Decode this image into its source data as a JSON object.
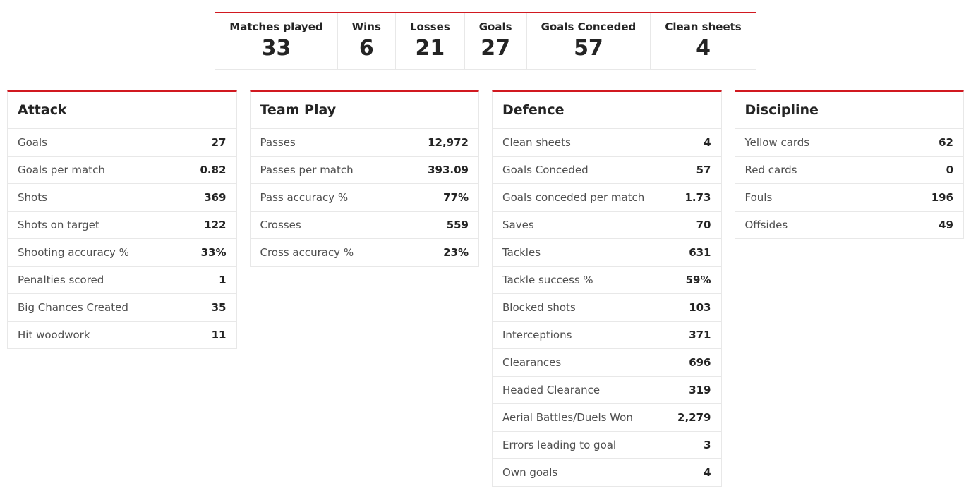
{
  "colors": {
    "accent": "#d11920",
    "border": "#e8e8e8",
    "text": "#242424",
    "label": "#4f4f4f"
  },
  "summary": {
    "items": [
      {
        "label": "Matches played",
        "value": "33"
      },
      {
        "label": "Wins",
        "value": "6"
      },
      {
        "label": "Losses",
        "value": "21"
      },
      {
        "label": "Goals",
        "value": "27"
      },
      {
        "label": "Goals Conceded",
        "value": "57"
      },
      {
        "label": "Clean sheets",
        "value": "4"
      }
    ]
  },
  "cards": [
    {
      "title": "Attack",
      "rows": [
        {
          "label": "Goals",
          "value": "27"
        },
        {
          "label": "Goals per match",
          "value": "0.82"
        },
        {
          "label": "Shots",
          "value": "369"
        },
        {
          "label": "Shots on target",
          "value": "122"
        },
        {
          "label": "Shooting accuracy %",
          "value": "33%"
        },
        {
          "label": "Penalties scored",
          "value": "1"
        },
        {
          "label": "Big Chances Created",
          "value": "35"
        },
        {
          "label": "Hit woodwork",
          "value": "11"
        }
      ]
    },
    {
      "title": "Team Play",
      "rows": [
        {
          "label": "Passes",
          "value": "12,972"
        },
        {
          "label": "Passes per match",
          "value": "393.09"
        },
        {
          "label": "Pass accuracy %",
          "value": "77%"
        },
        {
          "label": "Crosses",
          "value": "559"
        },
        {
          "label": "Cross accuracy %",
          "value": "23%"
        }
      ]
    },
    {
      "title": "Defence",
      "rows": [
        {
          "label": "Clean sheets",
          "value": "4"
        },
        {
          "label": "Goals Conceded",
          "value": "57"
        },
        {
          "label": "Goals conceded per match",
          "value": "1.73"
        },
        {
          "label": "Saves",
          "value": "70"
        },
        {
          "label": "Tackles",
          "value": "631"
        },
        {
          "label": "Tackle success %",
          "value": "59%"
        },
        {
          "label": "Blocked shots",
          "value": "103"
        },
        {
          "label": "Interceptions",
          "value": "371"
        },
        {
          "label": "Clearances",
          "value": "696"
        },
        {
          "label": "Headed Clearance",
          "value": "319"
        },
        {
          "label": "Aerial Battles/Duels Won",
          "value": "2,279"
        },
        {
          "label": "Errors leading to goal",
          "value": "3"
        },
        {
          "label": "Own goals",
          "value": "4"
        }
      ]
    },
    {
      "title": "Discipline",
      "rows": [
        {
          "label": "Yellow cards",
          "value": "62"
        },
        {
          "label": "Red cards",
          "value": "0"
        },
        {
          "label": "Fouls",
          "value": "196"
        },
        {
          "label": "Offsides",
          "value": "49"
        }
      ]
    }
  ]
}
